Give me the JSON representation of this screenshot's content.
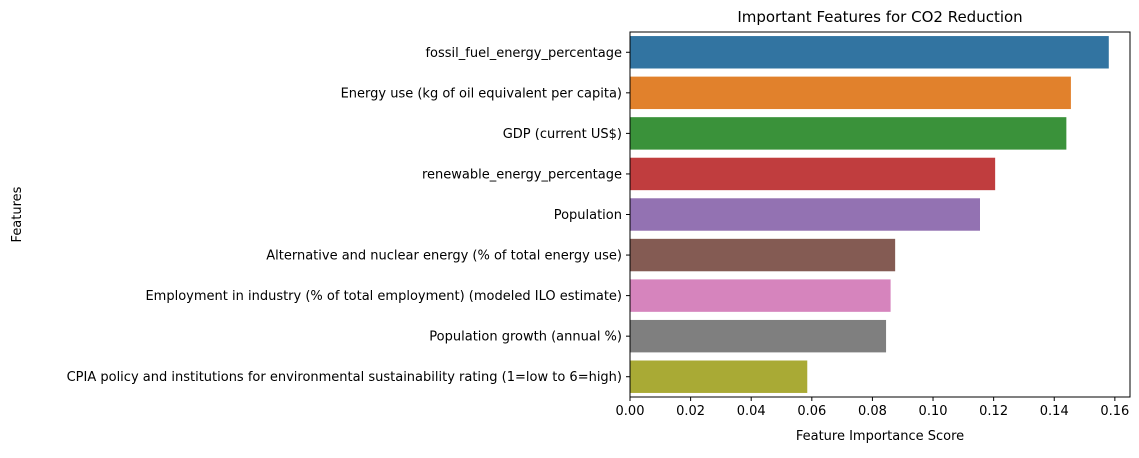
{
  "chart_data": {
    "type": "bar",
    "orientation": "horizontal",
    "title": "Important Features for CO2 Reduction",
    "xlabel": "Feature Importance Score",
    "ylabel": "Features",
    "xlim": [
      0,
      0.165
    ],
    "xticks": [
      "0.00",
      "0.02",
      "0.04",
      "0.06",
      "0.08",
      "0.10",
      "0.12",
      "0.14",
      "0.16"
    ],
    "xtick_values": [
      0,
      0.02,
      0.04,
      0.06,
      0.08,
      0.1,
      0.12,
      0.14,
      0.16
    ],
    "grid": false,
    "categories": [
      "fossil_fuel_energy_percentage",
      "Energy use (kg of oil equivalent per capita)",
      "GDP (current US$)",
      "renewable_energy_percentage",
      "Population",
      "Alternative and nuclear energy (% of total energy use)",
      "Employment in industry (% of total employment) (modeled ILO estimate)",
      "Population growth (annual %)",
      "CPIA policy and institutions for environmental sustainability rating (1=low to 6=high)"
    ],
    "values": [
      0.158,
      0.1455,
      0.144,
      0.1205,
      0.1155,
      0.0875,
      0.086,
      0.0845,
      0.0585
    ],
    "colors": [
      "#3274a1",
      "#e1812c",
      "#3a923a",
      "#c03d3e",
      "#9372b2",
      "#845b53",
      "#d684bd",
      "#7f7f7f",
      "#a9aa35"
    ]
  }
}
